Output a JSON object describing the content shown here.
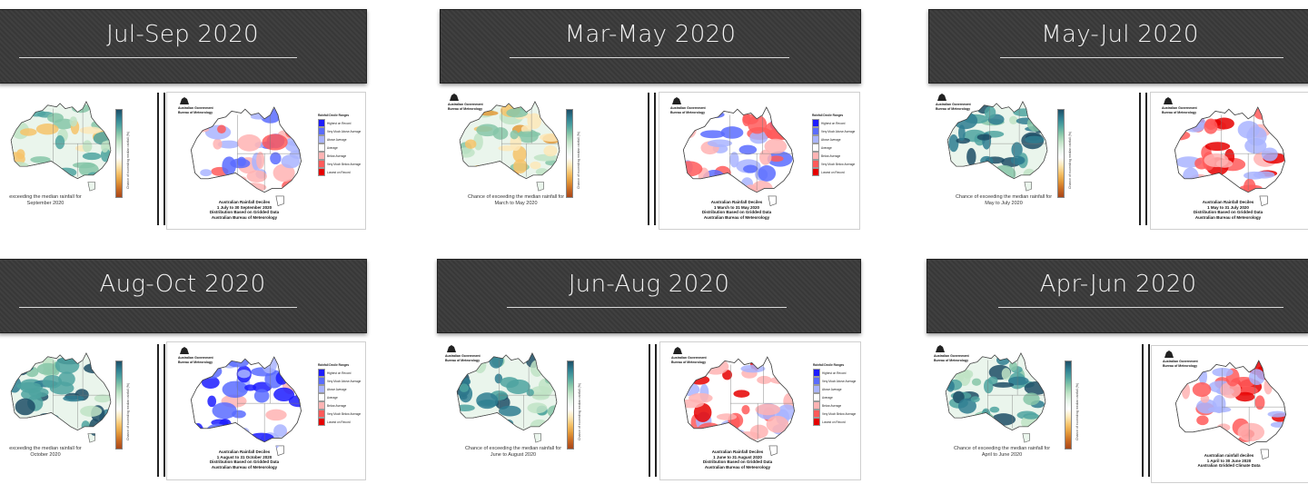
{
  "panels": [
    {
      "id": "jul-sep",
      "title": "Jul-Sep 2020",
      "forecast_caption": "exceeding the median rainfall for\nSeptember 2020",
      "decile_title": "Australian Rainfall Deciles\n1 July to 30 September 2020\nDistribution Based on Gridded Data\nAustralian Bureau of Meteorology",
      "tone": "mixed-dry"
    },
    {
      "id": "mar-may",
      "title": "Mar-May 2020",
      "forecast_caption": "Chance of exceeding the median rainfall for\nMarch to May 2020",
      "decile_title": "Australian Rainfall Deciles\n1 March to 31 May 2020\nDistribution Based on Gridded Data\nAustralian Bureau of Meteorology",
      "tone": "mixed-wet"
    },
    {
      "id": "may-jul",
      "title": "May-Jul 2020",
      "forecast_caption": "Chance of exceeding the median rainfall for\nMay to July 2020",
      "decile_title": "Australian Rainfall Deciles\n1 May to 31 July 2020\nDistribution Based on Gridded Data\nAustralian Bureau of Meteorology",
      "tone": "dry"
    },
    {
      "id": "aug-oct",
      "title": "Aug-Oct 2020",
      "forecast_caption": "exceeding the median rainfall for\nOctober 2020",
      "decile_title": "Australian Rainfall Deciles\n1 August to 31 October 2020\nDistribution Based on Gridded Data\nAustralian Bureau of Meteorology",
      "tone": "wet"
    },
    {
      "id": "jun-aug",
      "title": "Jun-Aug 2020",
      "forecast_caption": "Chance of exceeding the median rainfall for\nJune to August 2020",
      "decile_title": "Australian Rainfall Deciles\n1 June to 31 August 2020\nDistribution Based on Gridded Data\nAustralian Bureau of Meteorology",
      "tone": "mild-dry"
    },
    {
      "id": "apr-jun",
      "title": "Apr-Jun 2020",
      "forecast_caption": "Chance of exceeding the median rainfall for\nApril to June 2020",
      "decile_title": "Australian rainfall deciles\n1 April to 30 June 2020\nAustralian Gridded Climate Data",
      "tone": "dry"
    }
  ],
  "common": {
    "agency": "Australian Government\nBureau of Meteorology",
    "legend_title": "Rainfall Decile Ranges",
    "legend": [
      {
        "label": "Highest on Record",
        "color": "#1c1cff"
      },
      {
        "label": "Very Much Above Average",
        "color": "#5a6cff"
      },
      {
        "label": "Above Average",
        "color": "#a9b4ff"
      },
      {
        "label": "Average",
        "color": "#ffffff"
      },
      {
        "label": "Below Average",
        "color": "#ffb3b3"
      },
      {
        "label": "Very Much Below Average",
        "color": "#ff5a5a"
      },
      {
        "label": "Lowest on Record",
        "color": "#e60000"
      }
    ],
    "colorbar_label": "Chance of exceeding median rainfall (%)",
    "colorbar_colors": [
      "#1d4e66",
      "#2e7d90",
      "#4ea3a0",
      "#86c6a8",
      "#bfe3c6",
      "#e6f4e8",
      "#ffffff",
      "#fde8b8",
      "#f6c36a",
      "#e39a3a",
      "#c96a22",
      "#a8461a"
    ],
    "colors": {
      "banner": "#3a3a3a",
      "banner_text": "#f2f2f2"
    }
  }
}
